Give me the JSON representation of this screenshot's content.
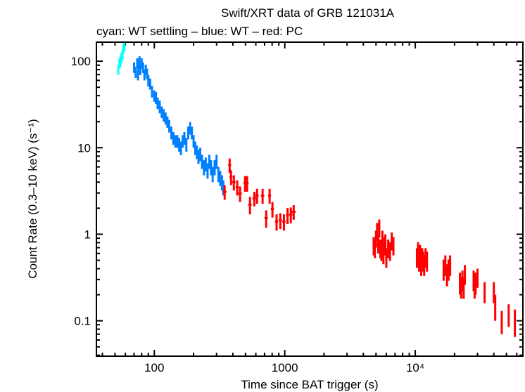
{
  "chart_data": {
    "type": "scatter",
    "title": "Swift/XRT data of GRB 121031A",
    "subtitle": "cyan: WT settling – blue: WT – red: PC",
    "xlabel": "Time since BAT trigger (s)",
    "ylabel": "Count Rate (0.3–10 keV) (s⁻¹)",
    "xscale": "log",
    "yscale": "log",
    "xlim": [
      36,
      66800
    ],
    "ylim": [
      0.039,
      166
    ],
    "xticks": [
      {
        "value": 100,
        "label": "100"
      },
      {
        "value": 1000,
        "label": "1000"
      },
      {
        "value": 10000,
        "label": "10⁴"
      }
    ],
    "yticks": [
      {
        "value": 0.1,
        "label": "0.1"
      },
      {
        "value": 1,
        "label": "1"
      },
      {
        "value": 10,
        "label": "10"
      },
      {
        "value": 100,
        "label": "100"
      }
    ],
    "grid": false,
    "series": [
      {
        "mode": "WT settling",
        "color": "#00ffff",
        "points": [
          [
            53,
            0.5,
            80,
            10
          ],
          [
            54,
            0.5,
            95,
            12
          ],
          [
            55,
            0.5,
            100,
            14
          ],
          [
            56,
            0.5,
            110,
            15
          ],
          [
            57,
            0.5,
            120,
            16
          ],
          [
            58,
            0.5,
            140,
            18
          ],
          [
            59,
            0.5,
            150,
            20
          ]
        ]
      },
      {
        "mode": "WT",
        "color": "#0080ff",
        "points": [
          [
            70,
            1,
            85,
            12
          ],
          [
            72,
            1,
            75,
            11
          ],
          [
            74,
            1,
            95,
            13
          ],
          [
            75,
            1,
            70,
            10
          ],
          [
            76,
            1,
            90,
            13
          ],
          [
            77,
            1,
            100,
            14
          ],
          [
            78,
            1,
            80,
            11
          ],
          [
            80,
            1,
            95,
            13
          ],
          [
            82,
            1,
            85,
            12
          ],
          [
            84,
            1,
            70,
            10
          ],
          [
            86,
            1,
            80,
            11
          ],
          [
            88,
            1,
            72,
            10
          ],
          [
            90,
            1,
            60,
            9
          ],
          [
            93,
            1,
            55,
            8
          ],
          [
            96,
            1,
            45,
            7
          ],
          [
            100,
            1,
            40,
            6
          ],
          [
            103,
            1,
            38,
            6
          ],
          [
            106,
            1,
            33,
            5
          ],
          [
            110,
            1,
            30,
            5
          ],
          [
            114,
            1,
            26,
            4
          ],
          [
            118,
            1,
            24,
            4
          ],
          [
            122,
            1,
            22,
            3.5
          ],
          [
            126,
            1,
            20,
            3
          ],
          [
            130,
            1,
            18,
            3
          ],
          [
            135,
            1,
            15,
            2.5
          ],
          [
            140,
            1,
            13,
            2.2
          ],
          [
            145,
            1,
            12,
            2
          ],
          [
            150,
            1,
            12,
            2
          ],
          [
            155,
            1,
            11,
            2
          ],
          [
            160,
            1,
            10,
            1.8
          ],
          [
            165,
            1,
            12,
            2
          ],
          [
            170,
            1,
            13,
            2.2
          ],
          [
            176,
            1,
            11,
            2
          ],
          [
            182,
            1,
            15,
            2.5
          ],
          [
            188,
            1,
            17,
            2.8
          ],
          [
            194,
            1,
            15,
            2.5
          ],
          [
            200,
            1,
            12,
            2
          ],
          [
            206,
            1,
            10,
            1.8
          ],
          [
            212,
            1,
            9,
            1.6
          ],
          [
            218,
            1,
            8,
            1.5
          ],
          [
            225,
            1,
            8.5,
            1.5
          ],
          [
            232,
            1,
            7,
            1.3
          ],
          [
            240,
            1,
            6,
            1.2
          ],
          [
            248,
            1,
            6.5,
            1.2
          ],
          [
            256,
            1,
            5.5,
            1.1
          ],
          [
            264,
            1,
            7,
            1.3
          ],
          [
            272,
            1,
            6,
            1.2
          ],
          [
            280,
            1,
            5,
            1
          ],
          [
            290,
            1,
            6,
            1.2
          ],
          [
            300,
            1,
            7,
            1.3
          ],
          [
            310,
            1,
            5,
            1
          ],
          [
            320,
            1,
            4.5,
            0.9
          ],
          [
            330,
            1,
            4,
            0.8
          ],
          [
            338,
            1,
            3.5,
            0.7
          ]
        ]
      },
      {
        "mode": "PC",
        "color": "#ff0000",
        "points": [
          [
            346,
            12,
            3.1,
            0.6
          ],
          [
            378,
            10,
            6.3,
            1.2
          ],
          [
            387,
            10,
            4.6,
            0.9
          ],
          [
            407,
            12,
            4.0,
            0.8
          ],
          [
            432,
            12,
            3.5,
            0.7
          ],
          [
            454,
            14,
            2.96,
            0.6
          ],
          [
            496,
            14,
            3.9,
            0.8
          ],
          [
            514,
            14,
            3.9,
            0.8
          ],
          [
            541,
            16,
            2.2,
            0.5
          ],
          [
            584,
            18,
            2.6,
            0.5
          ],
          [
            613,
            18,
            2.8,
            0.55
          ],
          [
            676,
            20,
            2.8,
            0.55
          ],
          [
            765,
            20,
            2.8,
            0.55
          ],
          [
            720,
            22,
            1.54,
            0.35
          ],
          [
            804,
            22,
            1.96,
            0.4
          ],
          [
            865,
            24,
            1.4,
            0.3
          ],
          [
            924,
            26,
            1.45,
            0.3
          ],
          [
            985,
            28,
            1.4,
            0.3
          ],
          [
            1050,
            28,
            1.66,
            0.35
          ],
          [
            1112,
            30,
            1.69,
            0.35
          ],
          [
            1170,
            40,
            1.82,
            0.35
          ],
          [
            4800,
            40,
            0.75,
            0.18
          ],
          [
            4900,
            40,
            0.7,
            0.17
          ],
          [
            5000,
            40,
            0.9,
            0.2
          ],
          [
            5100,
            40,
            1.1,
            0.25
          ],
          [
            5200,
            40,
            0.8,
            0.2
          ],
          [
            5300,
            40,
            1.2,
            0.28
          ],
          [
            5400,
            40,
            0.7,
            0.17
          ],
          [
            5500,
            40,
            0.65,
            0.16
          ],
          [
            5600,
            40,
            0.9,
            0.2
          ],
          [
            5700,
            40,
            0.6,
            0.15
          ],
          [
            5800,
            40,
            0.75,
            0.18
          ],
          [
            5900,
            40,
            0.8,
            0.2
          ],
          [
            6000,
            40,
            0.55,
            0.14
          ],
          [
            6200,
            50,
            0.7,
            0.17
          ],
          [
            6400,
            50,
            0.65,
            0.16
          ],
          [
            6600,
            50,
            0.85,
            0.2
          ],
          [
            6800,
            50,
            0.75,
            0.18
          ],
          [
            10300,
            80,
            0.55,
            0.14
          ],
          [
            10500,
            80,
            0.65,
            0.16
          ],
          [
            10700,
            80,
            0.5,
            0.13
          ],
          [
            10900,
            80,
            0.6,
            0.15
          ],
          [
            11100,
            80,
            0.45,
            0.12
          ],
          [
            11300,
            80,
            0.55,
            0.14
          ],
          [
            11500,
            80,
            0.5,
            0.13
          ],
          [
            11700,
            80,
            0.45,
            0.12
          ],
          [
            12000,
            80,
            0.55,
            0.14
          ],
          [
            12300,
            80,
            0.5,
            0.13
          ],
          [
            16500,
            100,
            0.4,
            0.11
          ],
          [
            17000,
            100,
            0.45,
            0.12
          ],
          [
            17500,
            100,
            0.35,
            0.1
          ],
          [
            18000,
            100,
            0.4,
            0.11
          ],
          [
            18500,
            100,
            0.45,
            0.12
          ],
          [
            22000,
            150,
            0.28,
            0.08
          ],
          [
            22500,
            150,
            0.25,
            0.07
          ],
          [
            23000,
            150,
            0.3,
            0.08
          ],
          [
            23500,
            150,
            0.25,
            0.07
          ],
          [
            24000,
            150,
            0.35,
            0.09
          ],
          [
            28000,
            150,
            0.3,
            0.08
          ],
          [
            28500,
            150,
            0.25,
            0.07
          ],
          [
            29000,
            150,
            0.28,
            0.08
          ],
          [
            30000,
            150,
            0.32,
            0.08
          ],
          [
            34000,
            200,
            0.22,
            0.06
          ],
          [
            40000,
            200,
            0.22,
            0.06
          ],
          [
            41000,
            200,
            0.15,
            0.05
          ],
          [
            46000,
            200,
            0.1,
            0.03
          ],
          [
            52000,
            200,
            0.12,
            0.035
          ],
          [
            58000,
            200,
            0.1,
            0.035
          ]
        ]
      }
    ]
  }
}
